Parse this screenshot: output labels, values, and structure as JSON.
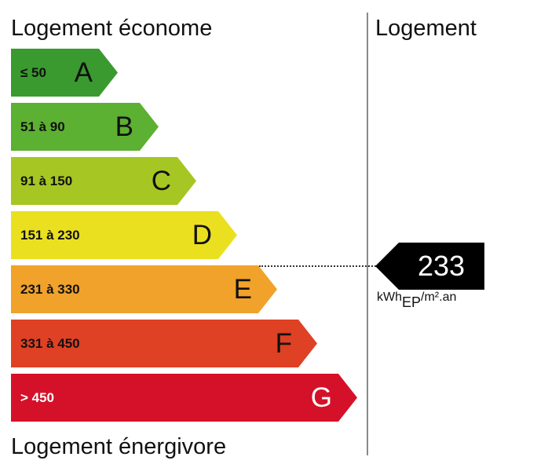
{
  "headings": {
    "top": "Logement économe",
    "bottom": "Logement énergivore",
    "right": "Logement"
  },
  "bands": [
    {
      "range": "≤ 50",
      "letter": "A",
      "color": "#3a9a2f",
      "text_color": "#111111"
    },
    {
      "range": "51 à 90",
      "letter": "B",
      "color": "#5cb032",
      "text_color": "#111111"
    },
    {
      "range": "91 à 150",
      "letter": "C",
      "color": "#a6c623",
      "text_color": "#111111"
    },
    {
      "range": "151 à 230",
      "letter": "D",
      "color": "#ebe01f",
      "text_color": "#111111"
    },
    {
      "range": "231 à 330",
      "letter": "E",
      "color": "#f0a22a",
      "text_color": "#111111"
    },
    {
      "range": "331 à 450",
      "letter": "F",
      "color": "#df4124",
      "text_color": "#111111"
    },
    {
      "range": "> 450",
      "letter": "G",
      "color": "#d5112a",
      "text_color": "#ffffff"
    }
  ],
  "indicator": {
    "value": "233",
    "band_letter": "E",
    "unit_main": "kWh",
    "unit_sub": "EP",
    "unit_tail": "/m².an",
    "color": "#000000"
  }
}
